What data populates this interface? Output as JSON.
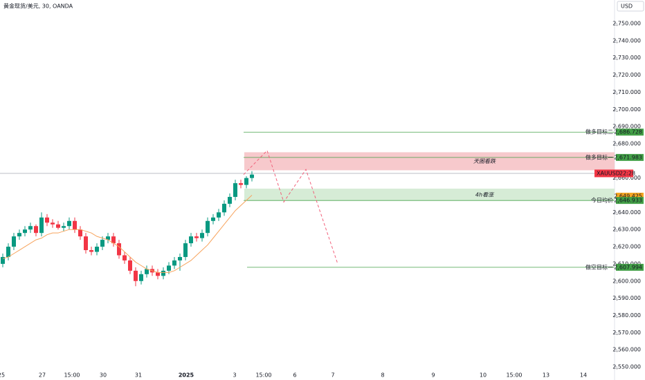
{
  "chart_data": {
    "type": "candlestick",
    "title": "黄金现货/美元, 30, OANDA",
    "currency": "USD",
    "categories": [
      "25",
      "27",
      "15:00",
      "30",
      "31",
      "2025",
      "3",
      "15:00",
      "6",
      "7",
      "8",
      "9",
      "10",
      "15:00",
      "13",
      "14"
    ],
    "ylim": [
      2550,
      2750
    ],
    "yticks": [
      {
        "value": 2550,
        "label": "2,550.000"
      },
      {
        "value": 2560,
        "label": "2,560.000"
      },
      {
        "value": 2570,
        "label": "2,570.000"
      },
      {
        "value": 2580,
        "label": "2,580.000"
      },
      {
        "value": 2590,
        "label": "2,590.000"
      },
      {
        "value": 2600,
        "label": "2,600.000"
      },
      {
        "value": 2610,
        "label": "2,610.000"
      },
      {
        "value": 2620,
        "label": "2,620.000"
      },
      {
        "value": 2630,
        "label": "2,630.000"
      },
      {
        "value": 2640,
        "label": "2,640.000"
      },
      {
        "value": 2660,
        "label": "2,660.000"
      },
      {
        "value": 2680,
        "label": "2,680.000"
      },
      {
        "value": 2690,
        "label": "2,690.000"
      },
      {
        "value": 2700,
        "label": "2,700.000"
      },
      {
        "value": 2710,
        "label": "2,710.000"
      },
      {
        "value": 2720,
        "label": "2,720.000"
      },
      {
        "value": 2730,
        "label": "2,730.000"
      },
      {
        "value": 2740,
        "label": "2,740.000"
      },
      {
        "value": 2750,
        "label": "2,750.000"
      }
    ],
    "up_color": "#089981",
    "down_color": "#f23645",
    "open": [
      2610,
      2614,
      2620,
      2626,
      2628,
      2630,
      2632,
      2628,
      2637,
      2634,
      2633,
      2631,
      2632,
      2635,
      2630,
      2626,
      2618,
      2617,
      2620,
      2624,
      2626,
      2622,
      2615,
      2612,
      2606,
      2600,
      2604,
      2607,
      2605,
      2603,
      2606,
      2609,
      2612,
      2614,
      2622,
      2626,
      2625,
      2628,
      2635,
      2637,
      2640,
      2645,
      2649,
      2657,
      2656,
      2660
    ],
    "high": [
      2616,
      2622,
      2628,
      2630,
      2632,
      2634,
      2633,
      2640,
      2639,
      2636,
      2635,
      2634,
      2637,
      2637,
      2632,
      2628,
      2620,
      2622,
      2626,
      2628,
      2628,
      2624,
      2617,
      2614,
      2608,
      2606,
      2609,
      2609,
      2607,
      2608,
      2611,
      2614,
      2616,
      2624,
      2628,
      2628,
      2630,
      2637,
      2639,
      2642,
      2647,
      2651,
      2659,
      2659,
      2661,
      2664
    ],
    "low": [
      2608,
      2612,
      2618,
      2624,
      2626,
      2628,
      2626,
      2626,
      2632,
      2631,
      2630,
      2629,
      2630,
      2628,
      2624,
      2616,
      2615,
      2615,
      2618,
      2622,
      2620,
      2613,
      2610,
      2604,
      2597,
      2598,
      2602,
      2603,
      2601,
      2601,
      2604,
      2607,
      2606,
      2612,
      2620,
      2623,
      2623,
      2626,
      2633,
      2635,
      2638,
      2643,
      2647,
      2654,
      2654,
      2658
    ],
    "close": [
      2614,
      2620,
      2626,
      2628,
      2630,
      2632,
      2628,
      2637,
      2634,
      2633,
      2631,
      2632,
      2635,
      2630,
      2626,
      2618,
      2617,
      2620,
      2624,
      2626,
      2622,
      2615,
      2612,
      2606,
      2600,
      2604,
      2607,
      2605,
      2603,
      2606,
      2609,
      2612,
      2614,
      2622,
      2626,
      2625,
      2628,
      2635,
      2637,
      2640,
      2645,
      2649,
      2657,
      2656,
      2660,
      2662
    ],
    "ma": {
      "color": "#f7a35c",
      "values": [
        2613,
        2614,
        2616,
        2618,
        2620,
        2622,
        2624,
        2625,
        2627,
        2628,
        2628,
        2629,
        2630,
        2630,
        2630,
        2629,
        2628,
        2626,
        2625,
        2624,
        2622,
        2620,
        2617,
        2614,
        2611,
        2609,
        2607,
        2606,
        2605,
        2605,
        2605,
        2606,
        2608,
        2610,
        2612,
        2615,
        2618,
        2621,
        2625,
        2629,
        2633,
        2637,
        2641,
        2644,
        2647,
        2650
      ]
    },
    "projection": {
      "color": "#f2607a",
      "values": [
        2662,
        2676,
        2646,
        2665,
        2610
      ]
    },
    "zones": [
      {
        "text": "天图看跌",
        "low": 2664.5,
        "high": 2675,
        "color": "#f7c9cc"
      },
      {
        "text": "4h看涨",
        "low": 2646.6,
        "high": 2653.8,
        "color": "#d6ecd6"
      }
    ],
    "levels": [
      {
        "name": "做多目标二",
        "value": 2686.728,
        "label": "2,686.728",
        "color": "#43a047"
      },
      {
        "name": "做多目标一",
        "value": 2671.983,
        "label": "2,671.983",
        "color": "#43a047"
      },
      {
        "value": 2649.425,
        "label": "2,649.425",
        "color": "#f5a623"
      },
      {
        "name": "今日均价",
        "value": 2646.933,
        "label": "2,646.933",
        "color": "#43a047"
      },
      {
        "name": "做空目标一",
        "value": 2607.994,
        "label": "2,607.994",
        "color": "#43a047"
      }
    ],
    "price": {
      "name": "XAUUSD",
      "value": 2662.7,
      "countdown": "22:28",
      "color": "#f23645"
    }
  }
}
